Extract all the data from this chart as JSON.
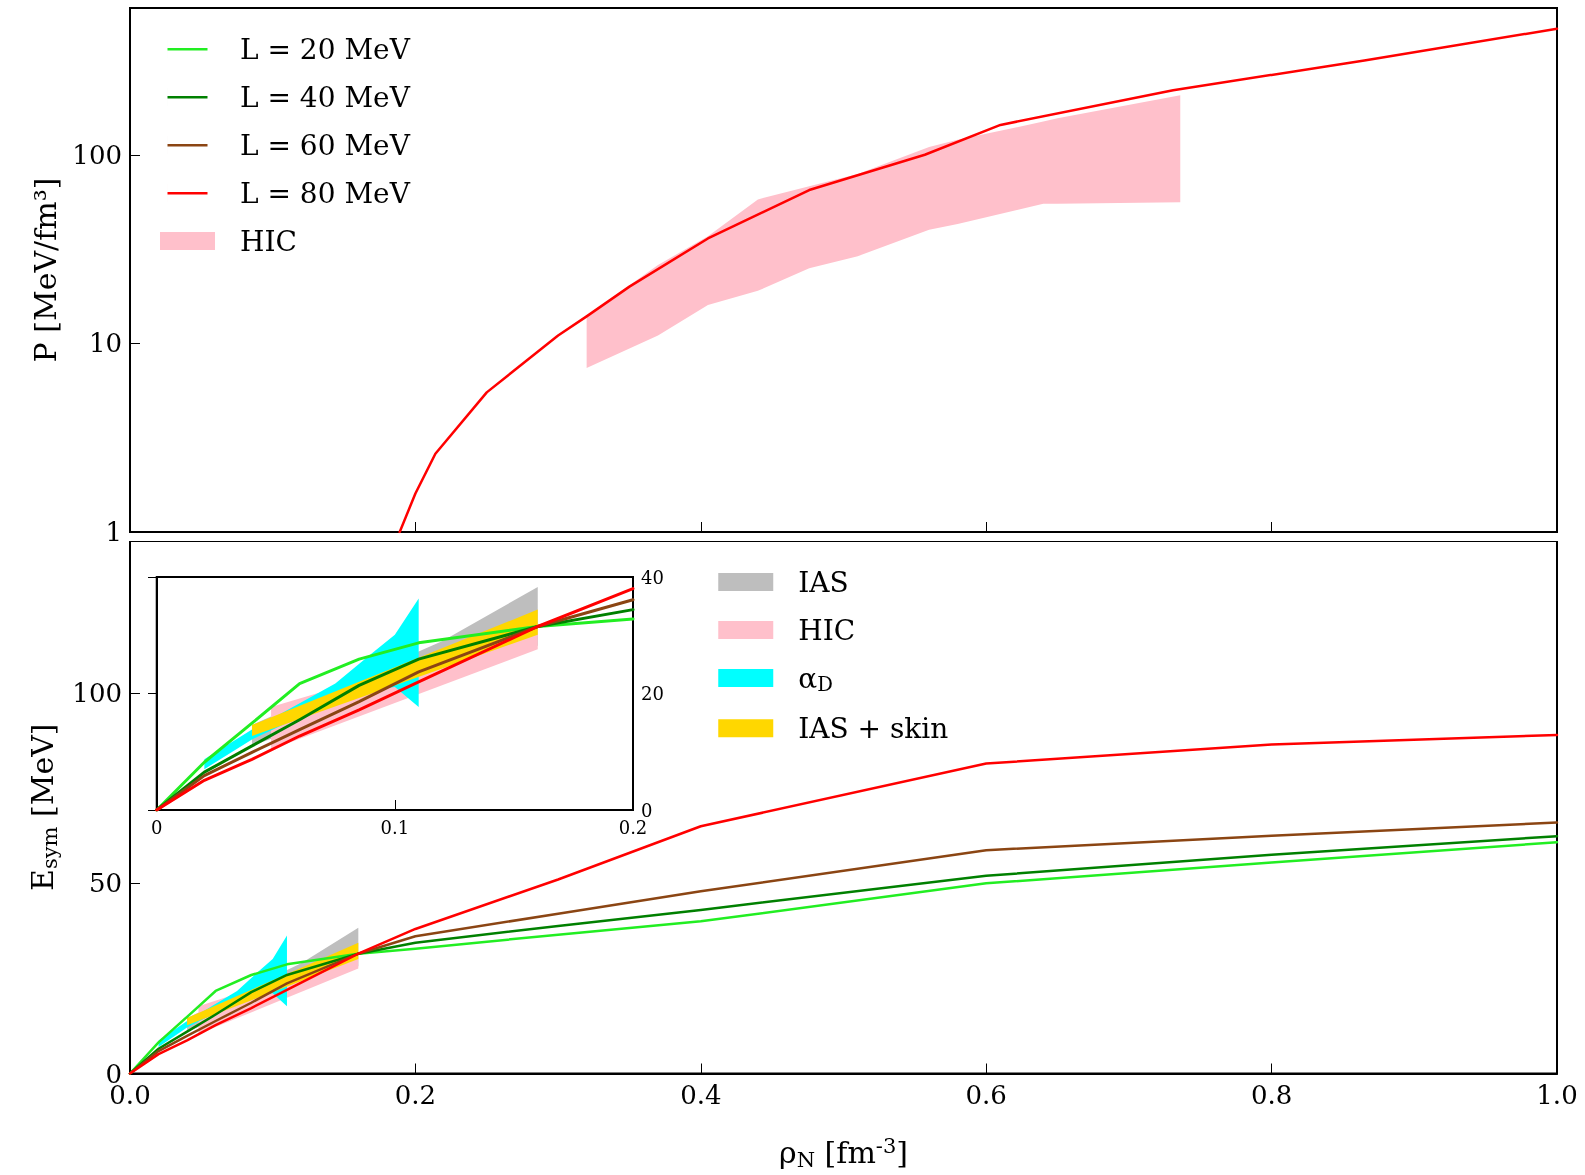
{
  "chart_data": [
    {
      "type": "line",
      "ylabel": "P [MeV/fm³]",
      "log": "y",
      "xlim": [
        0,
        1
      ],
      "ylim": [
        1,
        600
      ],
      "yticks": [
        1,
        10,
        100
      ],
      "xticks": [
        0,
        0.2,
        0.4,
        0.6,
        0.8,
        1
      ],
      "tick_labels": "y",
      "legend": "top left",
      "x": [
        0.189,
        0.2,
        0.214,
        0.25,
        0.3,
        0.32,
        0.35,
        0.405,
        0.476,
        0.557,
        0.61,
        0.731,
        0.865,
        1.0
      ],
      "series": [
        {
          "name": "L = 20 MeV",
          "color": "#22ee22",
          "values": [
            null,
            null,
            null,
            null,
            null,
            null,
            null,
            null,
            null,
            null,
            null,
            null,
            null,
            null
          ]
        },
        {
          "name": "L = 40 MeV",
          "color": "#008000",
          "values": [
            null,
            null,
            null,
            null,
            null,
            null,
            null,
            null,
            null,
            null,
            null,
            null,
            null,
            null
          ]
        },
        {
          "name": "L = 60 MeV",
          "color": "#8b4513",
          "values": [
            null,
            null,
            null,
            null,
            null,
            null,
            null,
            null,
            null,
            null,
            null,
            null,
            null,
            null
          ]
        },
        {
          "name": "L = 80 MeV",
          "color": "#ff0000",
          "values": [
            1,
            1.6,
            2.6,
            5.5,
            11,
            13.9,
            20,
            36,
            65,
            100,
            144,
            220,
            316,
            466
          ]
        },
        {
          "name": "HIC",
          "type": "area",
          "color": "#ffc0cb",
          "x": [
            0.32,
            0.37,
            0.405,
            0.44,
            0.476,
            0.51,
            0.56,
            0.58,
            0.64,
            0.65,
            0.736
          ],
          "values": [
            null,
            null,
            null,
            null,
            null,
            null,
            null,
            null,
            null,
            null,
            null
          ],
          "lower": [
            7.4,
            11,
            16,
            19,
            25,
            29,
            40,
            43,
            55,
            55,
            56
          ],
          "upper": [
            14,
            26,
            37,
            58,
            68,
            79,
            110,
            120,
            150,
            156,
            207
          ]
        }
      ]
    },
    {
      "type": "line",
      "xlabel": "ρ$_{N}$ [fm$^{-3}$]",
      "ylabel": "E$_{sym}$ [MeV]",
      "xlim": [
        0,
        1
      ],
      "ylim": [
        0,
        140
      ],
      "yticks": [
        0,
        50,
        100
      ],
      "xticks": [
        {
          "value": 0,
          "label": "0.0"
        },
        {
          "value": 0.2,
          "label": "0.2"
        },
        {
          "value": 0.4,
          "label": "0.4"
        },
        {
          "value": 0.6,
          "label": "0.6"
        },
        {
          "value": 0.8,
          "label": "0.8"
        },
        {
          "value": 1,
          "label": "1.0"
        }
      ],
      "legend": "top",
      "x": [
        0,
        0.02,
        0.04,
        0.06,
        0.085,
        0.11,
        0.16,
        0.2,
        0.3,
        0.4,
        0.6,
        0.8,
        1.0
      ],
      "series": [
        {
          "type": "area",
          "name": "IAS",
          "color": "#bebebe",
          "x": [
            0.04,
            0.12,
            0.16
          ],
          "values": [
            null,
            null,
            null
          ],
          "lower": [
            11,
            23.4,
            28.2
          ],
          "upper": [
            14.6,
            29,
            38.3
          ]
        },
        {
          "type": "area",
          "name": "HIC",
          "color": "#ffc0cb",
          "x": [
            0.048,
            0.16
          ],
          "values": [
            null,
            null
          ],
          "lower": [
            10.4,
            27.6
          ],
          "upper": [
            17.7,
            31.3
          ]
        },
        {
          "type": "area",
          "name": "α$_{D}$",
          "color": "#00ffff",
          "x": [
            0.02,
            0.04,
            0.075,
            0.09,
            0.1,
            0.11
          ],
          "values": [
            null,
            null,
            null,
            null,
            null,
            null
          ],
          "lower": [
            7,
            12.1,
            18.9,
            20.6,
            21.1,
            17.7
          ],
          "upper": [
            8.7,
            13.8,
            21.7,
            26.8,
            30.1,
            36.3
          ]
        },
        {
          "type": "area",
          "name": "IAS + skin",
          "color": "#ffd700",
          "x": [
            0.04,
            0.16
          ],
          "values": [
            null,
            null
          ],
          "lower": [
            12.7,
            30.1
          ],
          "upper": [
            14.6,
            34.4
          ]
        },
        {
          "color": "#22ee22",
          "values": [
            0,
            8.2,
            14.9,
            21.7,
            25.9,
            28.7,
            31.5,
            32.8,
            36.5,
            40,
            50,
            55.5,
            60.8
          ]
        },
        {
          "color": "#008000",
          "values": [
            0,
            6.5,
            11,
            15.5,
            21.4,
            25.9,
            31.5,
            34.4,
            38.8,
            43,
            52,
            57.5,
            62.4
          ]
        },
        {
          "color": "#8b4513",
          "values": [
            0,
            5.9,
            9.9,
            13.8,
            18.6,
            23.7,
            31.5,
            36.1,
            42,
            47.9,
            58.7,
            62.5,
            66
          ]
        },
        {
          "color": "#ff0000",
          "values": [
            0,
            5.1,
            8.7,
            12.7,
            17.2,
            22,
            31.5,
            38,
            51,
            65,
            81.5,
            86.5,
            89
          ]
        }
      ]
    },
    {
      "type": "line",
      "xlim": [
        0,
        0.2
      ],
      "ylim": [
        0,
        40
      ],
      "xticks": [
        0,
        0.1,
        0.2
      ],
      "yticks": [
        0,
        20,
        40
      ],
      "x": [
        0,
        0.02,
        0.04,
        0.06,
        0.085,
        0.11,
        0.16,
        0.2
      ],
      "series": [
        {
          "type": "area",
          "color": "#bebebe",
          "x": [
            0.04,
            0.12,
            0.16
          ],
          "values": [
            null,
            null,
            null
          ],
          "lower": [
            11,
            23.4,
            28.2
          ],
          "upper": [
            14.6,
            29,
            38.3
          ]
        },
        {
          "type": "area",
          "color": "#ffc0cb",
          "x": [
            0.048,
            0.16
          ],
          "values": [
            null,
            null
          ],
          "lower": [
            10.4,
            27.6
          ],
          "upper": [
            17.7,
            31.3
          ]
        },
        {
          "type": "area",
          "color": "#00ffff",
          "x": [
            0.02,
            0.04,
            0.075,
            0.09,
            0.1,
            0.11
          ],
          "values": [
            null,
            null,
            null,
            null,
            null,
            null
          ],
          "lower": [
            7,
            12.1,
            18.9,
            20.6,
            21.1,
            17.7
          ],
          "upper": [
            8.7,
            13.8,
            21.7,
            26.8,
            30.1,
            36.3
          ]
        },
        {
          "type": "area",
          "color": "#ffd700",
          "x": [
            0.04,
            0.16
          ],
          "values": [
            null,
            null
          ],
          "lower": [
            12.7,
            30.1
          ],
          "upper": [
            14.6,
            34.4
          ]
        },
        {
          "color": "#22ee22",
          "values": [
            0,
            8.2,
            14.9,
            21.7,
            25.9,
            28.7,
            31.5,
            32.8
          ]
        },
        {
          "color": "#008000",
          "values": [
            0,
            6.5,
            11,
            15.5,
            21.4,
            25.9,
            31.5,
            34.4
          ]
        },
        {
          "color": "#8b4513",
          "values": [
            0,
            5.9,
            9.9,
            13.8,
            18.6,
            23.7,
            31.5,
            36.1
          ]
        },
        {
          "color": "#ff0000",
          "values": [
            0,
            5.1,
            8.7,
            12.7,
            17.2,
            22,
            31.5,
            38
          ]
        }
      ]
    }
  ]
}
